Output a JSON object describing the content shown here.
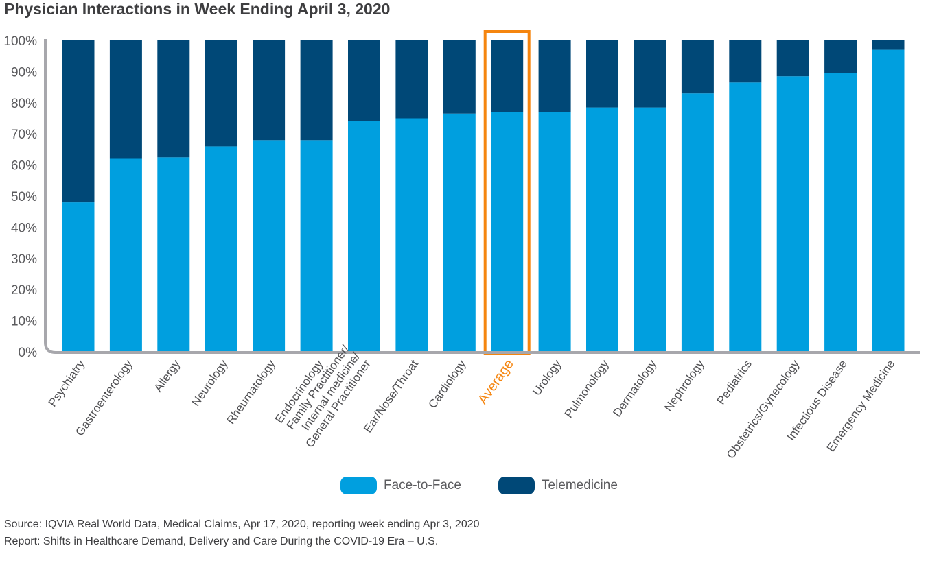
{
  "chart_data": {
    "type": "bar",
    "stacked": true,
    "title": "Physician Interactions in Week Ending April 3, 2020",
    "categories": [
      "Psychiatry",
      "Gastroenterology",
      "Allergy",
      "Neurology",
      "Rheumatology",
      "Endocrinology",
      "Family Practitioner/\nInternal medicine/\nGeneral Practitioner",
      "Ear/Nose/Throat",
      "Cardiology",
      "Average",
      "Urology",
      "Pulmonology",
      "Dermatology",
      "Nephrology",
      "Pediatrics",
      "Obstetrics/Gynecology",
      "Infectious Disease",
      "Emergency Medicine"
    ],
    "series": [
      {
        "name": "Face-to-Face",
        "color": "#009fdf",
        "values": [
          48,
          62,
          62.5,
          66,
          68,
          68,
          74,
          75,
          76.5,
          77,
          77,
          78.5,
          78.5,
          83,
          86.5,
          88.5,
          89.5,
          97
        ]
      },
      {
        "name": "Telemedicine",
        "color": "#004877",
        "values": [
          52,
          38,
          37.5,
          34,
          32,
          32,
          26,
          25,
          23.5,
          23,
          23,
          21.5,
          21.5,
          17,
          13.5,
          11.5,
          10.5,
          3
        ]
      }
    ],
    "y_ticks": [
      "100%",
      "90%",
      "80%",
      "70%",
      "60%",
      "50%",
      "40%",
      "30%",
      "20%",
      "10%",
      "0%"
    ],
    "ylim": [
      0,
      100
    ],
    "grid": false,
    "legend_position": "bottom-center",
    "highlight_category": "Average",
    "highlight_color": "#f5850f",
    "label_color": "#505053",
    "axis_color": "#a7a7ac"
  },
  "source": "Source: IQVIA Real World Data, Medical Claims, Apr 17, 2020, reporting week ending Apr 3, 2020",
  "report": "Report: Shifts in Healthcare Demand, Delivery and Care During the COVID-19 Era – U.S."
}
